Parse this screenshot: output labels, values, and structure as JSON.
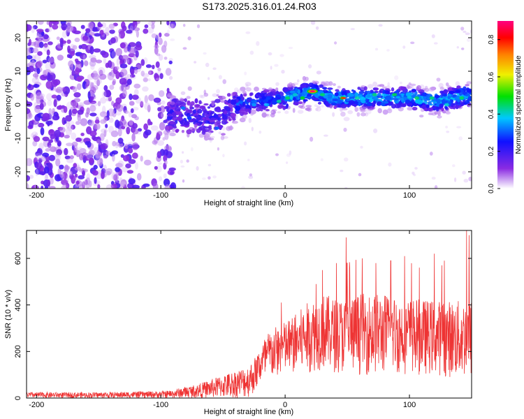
{
  "title": "S173.2025.316.01.24.R03",
  "chart_data": [
    {
      "type": "heatmap",
      "title": "S173.2025.316.01.24.R03",
      "xlabel": "Height of straight line (km)",
      "ylabel": "Frequency (Hz)",
      "xlim": [
        -208,
        150
      ],
      "ylim": [
        -25,
        25
      ],
      "xticks": [
        -200,
        -100,
        0,
        100
      ],
      "yticks": [
        -20,
        -10,
        0,
        10,
        20
      ],
      "xtick_labels": [
        "-200",
        "-100",
        "0",
        "100"
      ],
      "ytick_labels": [
        "-20",
        "-10",
        "0",
        "10",
        "20"
      ],
      "colorbar": {
        "label": "Normalized spectral amplitude",
        "range": [
          0,
          0.9
        ],
        "ticks": [
          0.0,
          0.2,
          0.4,
          0.6,
          0.8
        ],
        "tick_labels": [
          "0.0",
          "0.2",
          "0.4",
          "0.6",
          "0.8"
        ],
        "colormap": [
          "#ffffff",
          "#8a2be2",
          "#1010ff",
          "#00c8ff",
          "#00e000",
          "#f0f000",
          "#ff8000",
          "#ff0000",
          "#ff0080"
        ]
      },
      "description_of_content": "Scattered low-amplitude purple patches for heights below about -100 km; a coherent band near 0 to 5 Hz from about -90 km to 150 km with higher amplitudes (cyan/green), peaking (red) near 20 km at about 4 Hz",
      "band_centerline": [
        [
          -90,
          -3
        ],
        [
          -60,
          -4
        ],
        [
          -40,
          0
        ],
        [
          -20,
          1
        ],
        [
          0,
          2
        ],
        [
          20,
          4
        ],
        [
          40,
          2
        ],
        [
          60,
          2
        ],
        [
          80,
          2
        ],
        [
          100,
          2
        ],
        [
          120,
          1
        ],
        [
          150,
          3
        ]
      ],
      "peak": {
        "x": 22,
        "y": 4,
        "value": 0.9
      }
    },
    {
      "type": "line",
      "xlabel": "Height of straight line (km)",
      "ylabel": "SNR (10 * v/v)",
      "xlim": [
        -208,
        150
      ],
      "ylim": [
        0,
        720
      ],
      "xticks": [
        -200,
        -100,
        0,
        100
      ],
      "yticks": [
        0,
        200,
        400,
        600
      ],
      "xtick_labels": [
        "-200",
        "-100",
        "0",
        "100"
      ],
      "ytick_labels": [
        "0",
        "200",
        "400",
        "600"
      ],
      "color": "#ee3333",
      "envelope": {
        "x": [
          -208,
          -150,
          -100,
          -90,
          -80,
          -70,
          -60,
          -50,
          -40,
          -30,
          -25,
          -20,
          -15,
          -10,
          0,
          10,
          20,
          30,
          40,
          50,
          60,
          80,
          100,
          120,
          140,
          150
        ],
        "low": [
          0,
          0,
          0,
          0,
          0,
          0,
          0,
          0,
          0,
          0,
          20,
          60,
          60,
          80,
          100,
          100,
          110,
          120,
          110,
          100,
          100,
          100,
          100,
          100,
          80,
          80
        ],
        "high": [
          25,
          25,
          30,
          35,
          50,
          60,
          80,
          100,
          120,
          140,
          170,
          220,
          280,
          300,
          330,
          370,
          420,
          450,
          430,
          430,
          450,
          450,
          430,
          420,
          420,
          430
        ]
      },
      "spikes": [
        [
          -3,
          410
        ],
        [
          25,
          490
        ],
        [
          30,
          550
        ],
        [
          49,
          690
        ],
        [
          52,
          560
        ],
        [
          62,
          600
        ],
        [
          73,
          580
        ],
        [
          85,
          590
        ],
        [
          96,
          610
        ],
        [
          108,
          560
        ],
        [
          120,
          620
        ],
        [
          128,
          590
        ],
        [
          146,
          720
        ],
        [
          148,
          700
        ]
      ]
    }
  ]
}
